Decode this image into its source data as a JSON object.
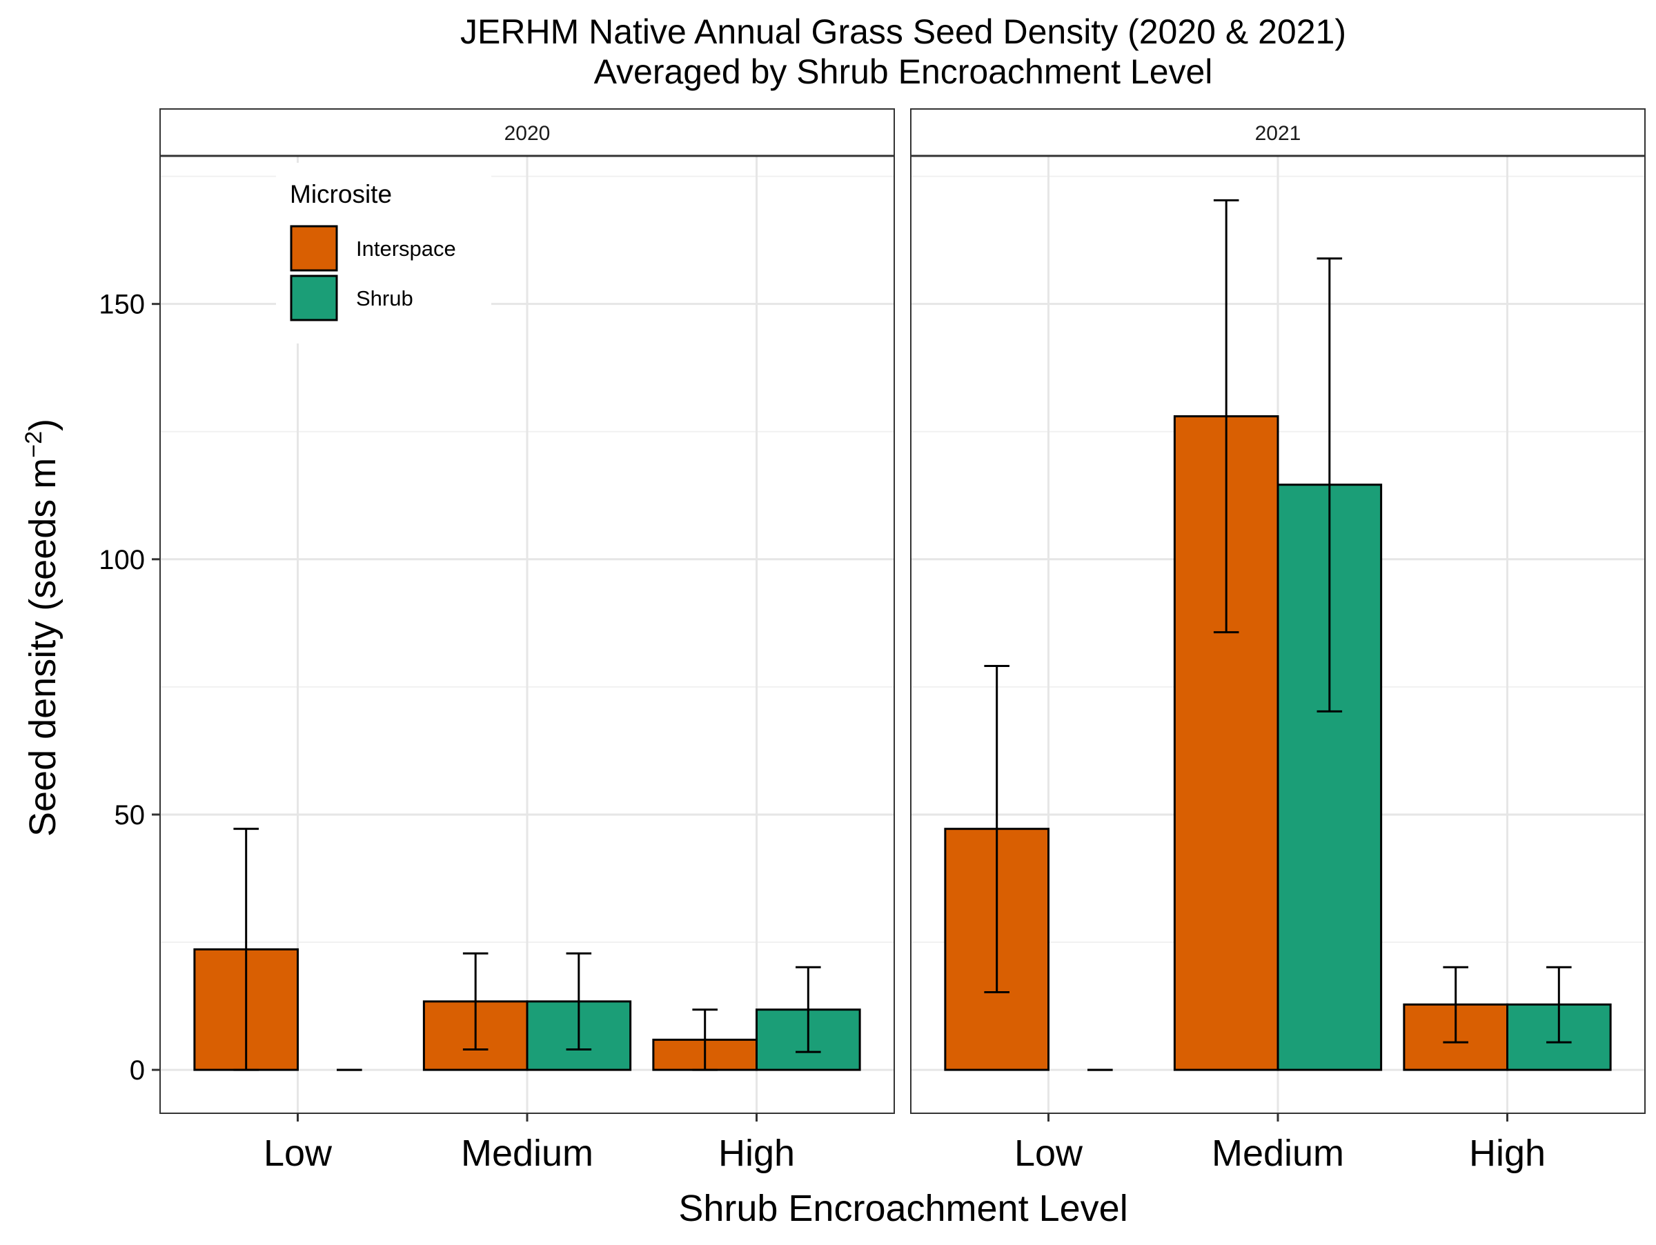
{
  "chart_data": {
    "type": "bar",
    "title": "JERHM Native Annual Grass Seed Density (2020 & 2021)",
    "subtitle": "Averaged by Shrub Encroachment Level",
    "xlabel": "Shrub Encroachment Level",
    "ylabel_prefix": "Seed density (seeds m",
    "ylabel_sup": "−2",
    "ylabel_suffix": ")",
    "categories": [
      "Low",
      "Medium",
      "High"
    ],
    "ylim": [
      -8.5,
      179
    ],
    "yticks": [
      0,
      50,
      100,
      150
    ],
    "grid": true,
    "legend": {
      "title": "Microsite",
      "placement": "top-left",
      "entries": [
        {
          "name": "Interspace",
          "color": "#d95f02"
        },
        {
          "name": "Shrub",
          "color": "#1b9e77"
        }
      ]
    },
    "panels": [
      {
        "strip": "2020",
        "series": [
          {
            "name": "Interspace",
            "values": [
              23.6,
              13.4,
              5.9
            ],
            "error_low": [
              0,
              4.0,
              0
            ],
            "error_high": [
              47.2,
              22.8,
              11.8
            ]
          },
          {
            "name": "Shrub",
            "values": [
              0,
              13.4,
              11.8
            ],
            "error_low": [
              0,
              4.0,
              3.5
            ],
            "error_high": [
              0,
              22.8,
              20.1
            ]
          }
        ]
      },
      {
        "strip": "2021",
        "series": [
          {
            "name": "Interspace",
            "values": [
              47.2,
              128.0,
              12.8
            ],
            "error_low": [
              15.2,
              85.7,
              5.4
            ],
            "error_high": [
              79.1,
              170.3,
              20.1
            ]
          },
          {
            "name": "Shrub",
            "values": [
              0,
              114.6,
              12.8
            ],
            "error_low": [
              0,
              70.2,
              5.4
            ],
            "error_high": [
              0,
              158.9,
              20.1
            ]
          }
        ]
      }
    ]
  }
}
